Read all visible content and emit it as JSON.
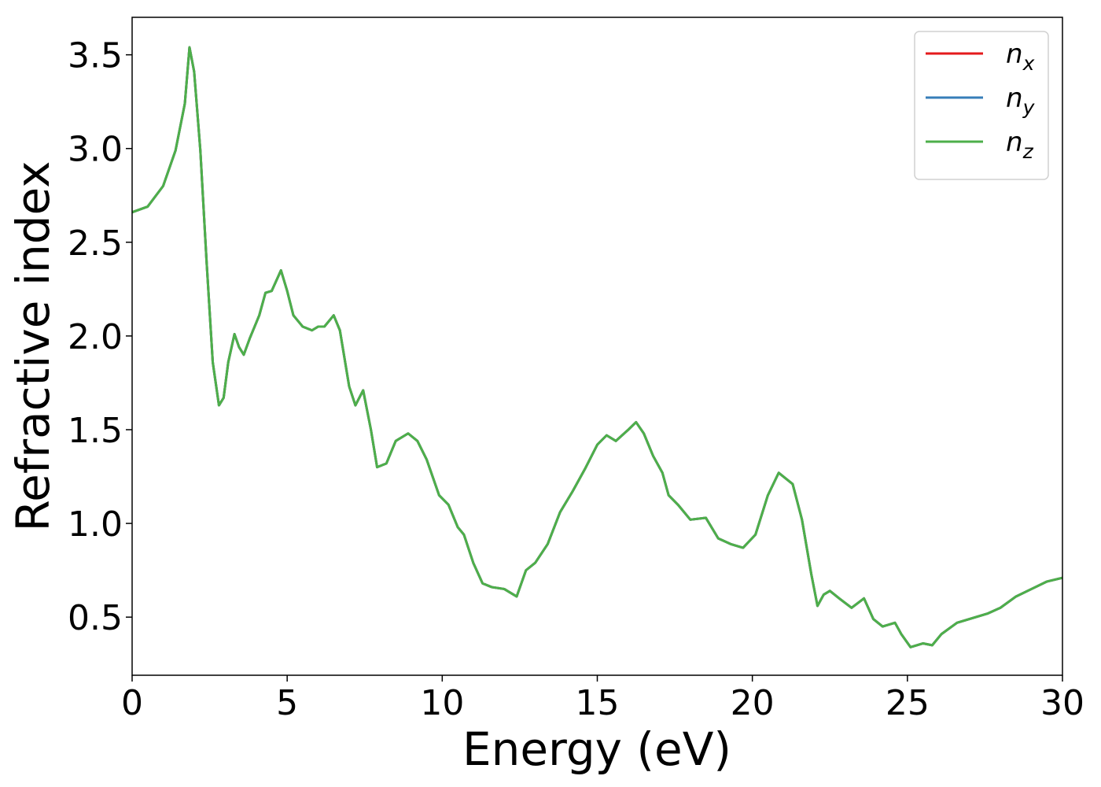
{
  "chart_data": {
    "type": "line",
    "xlabel": "Energy (eV)",
    "ylabel": "Refractive index",
    "xlim": [
      0,
      30
    ],
    "ylim": [
      0.19,
      3.7
    ],
    "xticks": [
      0,
      5,
      10,
      15,
      20,
      25,
      30
    ],
    "yticks": [
      0.5,
      {
        "value": 1,
        "label": "1.0"
      },
      1.5,
      {
        "value": 2,
        "label": "2.0"
      },
      2.5,
      {
        "value": 3,
        "label": "3.0"
      },
      3.5
    ],
    "grid": false,
    "legend": "upper right",
    "x": [
      0,
      0.5,
      1.0,
      1.4,
      1.7,
      1.85,
      2.0,
      2.2,
      2.4,
      2.6,
      2.8,
      2.95,
      3.1,
      3.3,
      3.45,
      3.6,
      3.8,
      4.1,
      4.3,
      4.5,
      4.8,
      5.0,
      5.2,
      5.5,
      5.8,
      6.0,
      6.2,
      6.5,
      6.7,
      7.0,
      7.2,
      7.45,
      7.7,
      7.9,
      8.2,
      8.5,
      8.9,
      9.2,
      9.5,
      9.9,
      10.2,
      10.5,
      10.7,
      11.0,
      11.3,
      11.6,
      12.0,
      12.4,
      12.7,
      13.0,
      13.4,
      13.8,
      14.2,
      14.6,
      15.0,
      15.3,
      15.6,
      16.0,
      16.25,
      16.5,
      16.8,
      17.1,
      17.3,
      17.6,
      18.0,
      18.5,
      18.9,
      19.3,
      19.7,
      20.1,
      20.5,
      20.85,
      21.3,
      21.6,
      21.9,
      22.1,
      22.3,
      22.5,
      22.8,
      23.2,
      23.6,
      23.9,
      24.2,
      24.6,
      24.8,
      25.1,
      25.5,
      25.8,
      26.1,
      26.6,
      27.0,
      27.6,
      28.0,
      28.5,
      29.0,
      29.5,
      30
    ],
    "series": [
      {
        "name": "n_x",
        "color": "#e41a1c",
        "values": [
          2.66,
          2.69,
          2.8,
          2.99,
          3.24,
          3.54,
          3.41,
          2.99,
          2.4,
          1.86,
          1.63,
          1.67,
          1.86,
          2.01,
          1.94,
          1.9,
          1.99,
          2.11,
          2.23,
          2.24,
          2.35,
          2.24,
          2.11,
          2.05,
          2.03,
          2.05,
          2.05,
          2.11,
          2.03,
          1.73,
          1.63,
          1.71,
          1.5,
          1.3,
          1.32,
          1.44,
          1.48,
          1.44,
          1.34,
          1.15,
          1.1,
          0.98,
          0.94,
          0.79,
          0.68,
          0.66,
          0.65,
          0.61,
          0.75,
          0.79,
          0.89,
          1.06,
          1.17,
          1.29,
          1.42,
          1.47,
          1.44,
          1.5,
          1.54,
          1.48,
          1.36,
          1.27,
          1.15,
          1.1,
          1.02,
          1.03,
          0.92,
          0.89,
          0.87,
          0.94,
          1.15,
          1.27,
          1.21,
          1.02,
          0.73,
          0.56,
          0.62,
          0.64,
          0.6,
          0.55,
          0.6,
          0.49,
          0.45,
          0.47,
          0.41,
          0.34,
          0.36,
          0.35,
          0.41,
          0.47,
          0.49,
          0.52,
          0.55,
          0.61,
          0.65,
          0.69,
          0.71
        ]
      },
      {
        "name": "n_y",
        "color": "#377eb8",
        "values": [
          2.66,
          2.69,
          2.8,
          2.99,
          3.24,
          3.54,
          3.41,
          2.99,
          2.4,
          1.86,
          1.63,
          1.67,
          1.86,
          2.01,
          1.94,
          1.9,
          1.99,
          2.11,
          2.23,
          2.24,
          2.35,
          2.24,
          2.11,
          2.05,
          2.03,
          2.05,
          2.05,
          2.11,
          2.03,
          1.73,
          1.63,
          1.71,
          1.5,
          1.3,
          1.32,
          1.44,
          1.48,
          1.44,
          1.34,
          1.15,
          1.1,
          0.98,
          0.94,
          0.79,
          0.68,
          0.66,
          0.65,
          0.61,
          0.75,
          0.79,
          0.89,
          1.06,
          1.17,
          1.29,
          1.42,
          1.47,
          1.44,
          1.5,
          1.54,
          1.48,
          1.36,
          1.27,
          1.15,
          1.1,
          1.02,
          1.03,
          0.92,
          0.89,
          0.87,
          0.94,
          1.15,
          1.27,
          1.21,
          1.02,
          0.73,
          0.56,
          0.62,
          0.64,
          0.6,
          0.55,
          0.6,
          0.49,
          0.45,
          0.47,
          0.41,
          0.34,
          0.36,
          0.35,
          0.41,
          0.47,
          0.49,
          0.52,
          0.55,
          0.61,
          0.65,
          0.69,
          0.71
        ]
      },
      {
        "name": "n_z",
        "color": "#4daf4a",
        "values": [
          2.66,
          2.69,
          2.8,
          2.99,
          3.24,
          3.54,
          3.41,
          2.99,
          2.4,
          1.86,
          1.63,
          1.67,
          1.86,
          2.01,
          1.94,
          1.9,
          1.99,
          2.11,
          2.23,
          2.24,
          2.35,
          2.24,
          2.11,
          2.05,
          2.03,
          2.05,
          2.05,
          2.11,
          2.03,
          1.73,
          1.63,
          1.71,
          1.5,
          1.3,
          1.32,
          1.44,
          1.48,
          1.44,
          1.34,
          1.15,
          1.1,
          0.98,
          0.94,
          0.79,
          0.68,
          0.66,
          0.65,
          0.61,
          0.75,
          0.79,
          0.89,
          1.06,
          1.17,
          1.29,
          1.42,
          1.47,
          1.44,
          1.5,
          1.54,
          1.48,
          1.36,
          1.27,
          1.15,
          1.1,
          1.02,
          1.03,
          0.92,
          0.89,
          0.87,
          0.94,
          1.15,
          1.27,
          1.21,
          1.02,
          0.73,
          0.56,
          0.62,
          0.64,
          0.6,
          0.55,
          0.6,
          0.49,
          0.45,
          0.47,
          0.41,
          0.34,
          0.36,
          0.35,
          0.41,
          0.47,
          0.49,
          0.52,
          0.55,
          0.61,
          0.65,
          0.69,
          0.71
        ]
      }
    ]
  }
}
